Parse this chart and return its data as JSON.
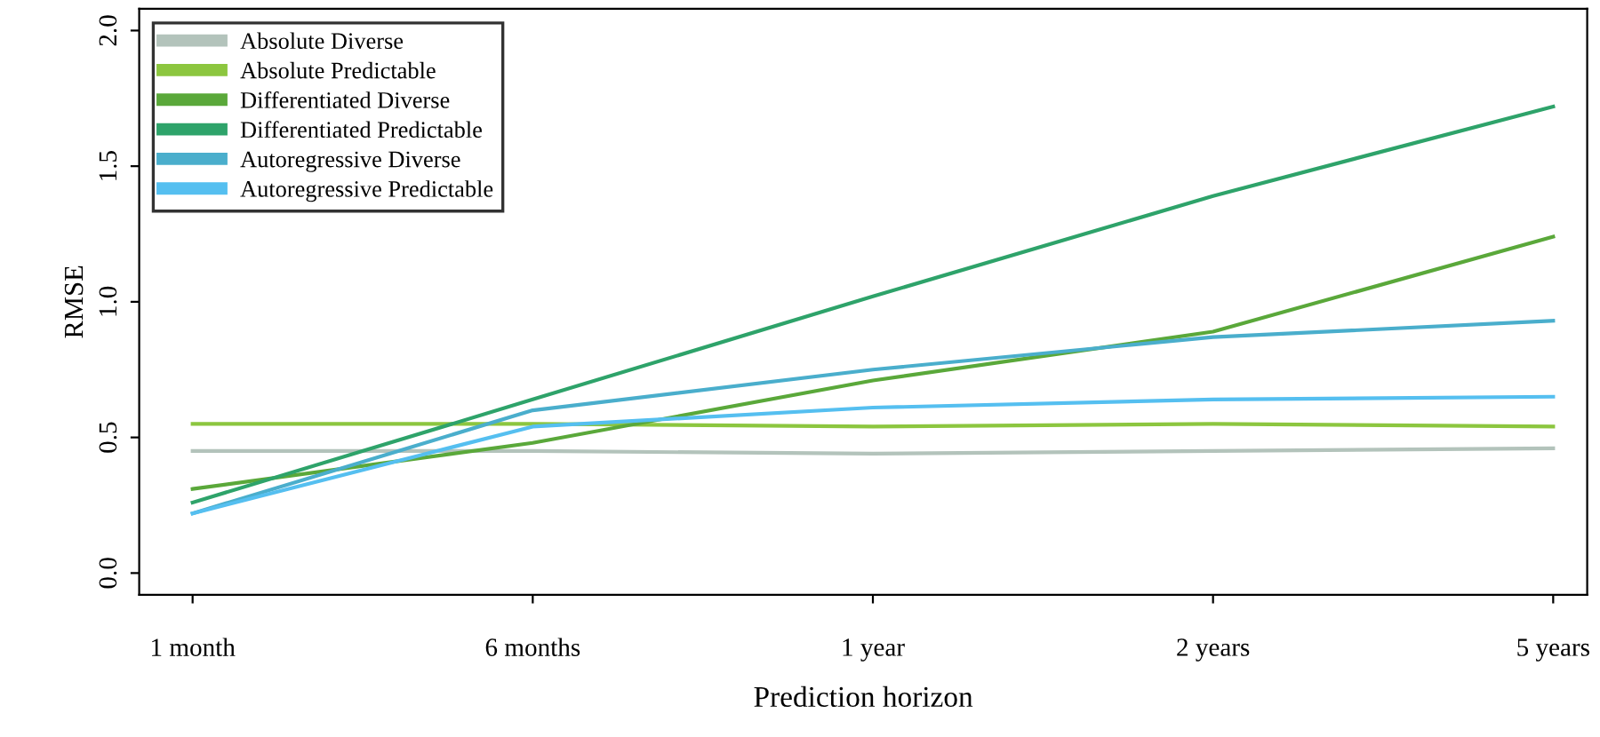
{
  "chart_data": {
    "type": "line",
    "xlabel": "Prediction horizon",
    "ylabel": "RMSE",
    "categories": [
      "1 month",
      "6 months",
      "1 year",
      "2 years",
      "5 years"
    ],
    "ylim": [
      -0.08,
      2.08
    ],
    "yticks": [
      {
        "value": 0,
        "label": "0.0"
      },
      0.5,
      {
        "value": 1,
        "label": "1.0"
      },
      1.5,
      {
        "value": 2,
        "label": "2.0"
      }
    ],
    "grid": false,
    "legend": "top left",
    "marker": "none",
    "line_style": "solid",
    "series": [
      {
        "name": "Absolute Diverse",
        "color": "#b3c3bb",
        "values": [
          0.45,
          0.45,
          0.44,
          0.45,
          0.46
        ]
      },
      {
        "name": "Absolute Predictable",
        "color": "#8cc63f",
        "values": [
          0.55,
          0.55,
          0.54,
          0.55,
          0.54
        ]
      },
      {
        "name": "Differentiated Diverse",
        "color": "#5aa83a",
        "values": [
          0.31,
          0.48,
          0.71,
          0.89,
          1.24
        ]
      },
      {
        "name": "Differentiated Predictable",
        "color": "#2ea36a",
        "values": [
          0.26,
          0.64,
          1.02,
          1.39,
          1.72
        ]
      },
      {
        "name": "Autoregressive Diverse",
        "color": "#4aaecc",
        "values": [
          0.22,
          0.6,
          0.75,
          0.87,
          0.93
        ]
      },
      {
        "name": "Autoregressive Predictable",
        "color": "#55bff0",
        "values": [
          0.22,
          0.54,
          0.61,
          0.64,
          0.65
        ]
      }
    ]
  }
}
